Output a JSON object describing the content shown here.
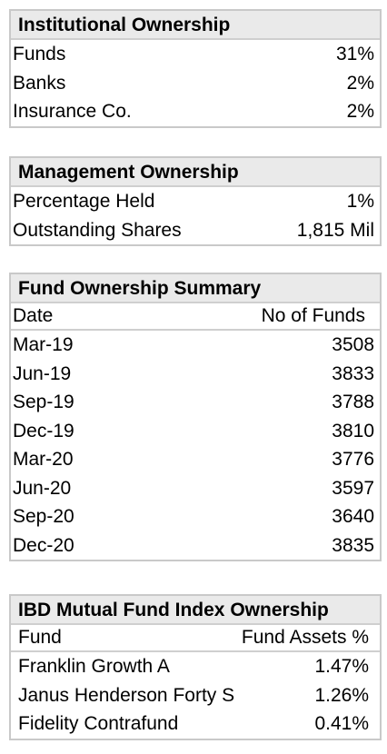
{
  "institutional": {
    "title": "Institutional Ownership",
    "rows": [
      {
        "label": "Funds",
        "value": "31%"
      },
      {
        "label": "Banks",
        "value": "2%"
      },
      {
        "label": "Insurance Co.",
        "value": "2%"
      }
    ]
  },
  "management": {
    "title": "Management Ownership",
    "rows": [
      {
        "label": "Percentage Held",
        "value": "1%"
      },
      {
        "label": "Outstanding Shares",
        "value": "1,815 Mil"
      }
    ]
  },
  "fund_summary": {
    "title": "Fund Ownership Summary",
    "header": {
      "date": "Date",
      "count": "No of Funds"
    },
    "rows": [
      {
        "date": "Mar-19",
        "count": "3508"
      },
      {
        "date": "Jun-19",
        "count": "3833"
      },
      {
        "date": "Sep-19",
        "count": "3788"
      },
      {
        "date": "Dec-19",
        "count": "3810"
      },
      {
        "date": "Mar-20",
        "count": "3776"
      },
      {
        "date": "Jun-20",
        "count": "3597"
      },
      {
        "date": "Sep-20",
        "count": "3640"
      },
      {
        "date": "Dec-20",
        "count": "3835"
      }
    ]
  },
  "ibd_index": {
    "title": "IBD Mutual Fund Index Ownership",
    "header": {
      "fund": "Fund",
      "assets": "Fund Assets %"
    },
    "rows": [
      {
        "fund": "Franklin Growth A",
        "assets": "1.47%"
      },
      {
        "fund": "Janus Henderson Forty S",
        "assets": "1.26%"
      },
      {
        "fund": "Fidelity Contrafund",
        "assets": "0.41%"
      }
    ]
  }
}
